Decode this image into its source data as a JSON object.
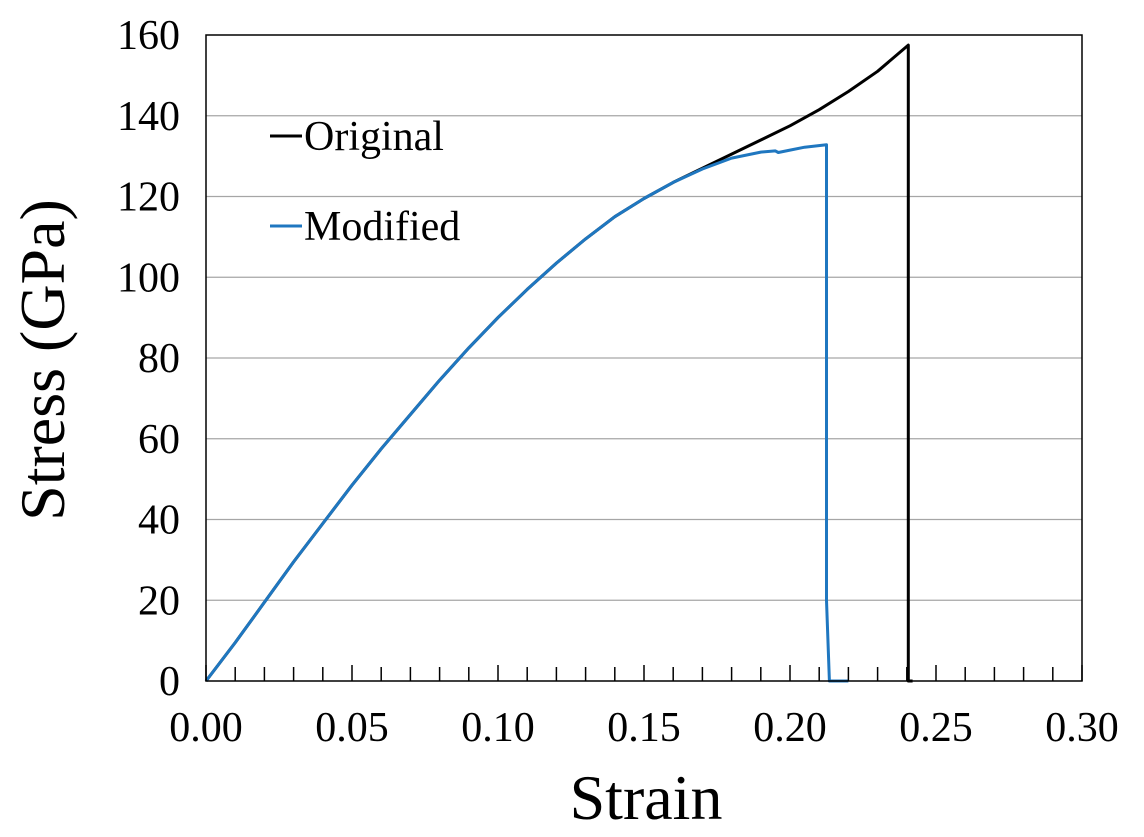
{
  "chart_data": {
    "type": "line",
    "title": "",
    "xlabel": "Strain",
    "ylabel": "Stress (GPa)",
    "xlim": [
      0,
      0.3
    ],
    "ylim": [
      0,
      160
    ],
    "x_ticks": [
      "0.00",
      "0.05",
      "0.10",
      "0.15",
      "0.20",
      "0.25",
      "0.30"
    ],
    "y_ticks": [
      "0",
      "20",
      "40",
      "60",
      "80",
      "100",
      "120",
      "140",
      "160"
    ],
    "grid": "horizontal",
    "legend_position": "upper-left",
    "series": [
      {
        "name": "Original",
        "color": "#000000",
        "points": [
          [
            0.0,
            0.0
          ],
          [
            0.01,
            9.5
          ],
          [
            0.02,
            19.5
          ],
          [
            0.03,
            29.5
          ],
          [
            0.04,
            39.0
          ],
          [
            0.05,
            48.5
          ],
          [
            0.06,
            57.5
          ],
          [
            0.07,
            66.0
          ],
          [
            0.08,
            74.5
          ],
          [
            0.09,
            82.5
          ],
          [
            0.1,
            90.0
          ],
          [
            0.11,
            97.0
          ],
          [
            0.12,
            103.5
          ],
          [
            0.13,
            109.5
          ],
          [
            0.14,
            115.0
          ],
          [
            0.15,
            119.5
          ],
          [
            0.16,
            123.5
          ],
          [
            0.17,
            127.0
          ],
          [
            0.18,
            130.5
          ],
          [
            0.19,
            134.0
          ],
          [
            0.2,
            137.5
          ],
          [
            0.21,
            141.5
          ],
          [
            0.22,
            146.0
          ],
          [
            0.23,
            151.0
          ],
          [
            0.2405,
            157.5
          ],
          [
            0.2405,
            0.0
          ],
          [
            0.242,
            0.0
          ]
        ]
      },
      {
        "name": "Modified",
        "color": "#1f77c0",
        "points": [
          [
            0.0,
            0.0
          ],
          [
            0.01,
            9.5
          ],
          [
            0.02,
            19.5
          ],
          [
            0.03,
            29.5
          ],
          [
            0.04,
            39.0
          ],
          [
            0.05,
            48.5
          ],
          [
            0.06,
            57.5
          ],
          [
            0.07,
            66.0
          ],
          [
            0.08,
            74.5
          ],
          [
            0.09,
            82.5
          ],
          [
            0.1,
            90.0
          ],
          [
            0.11,
            97.0
          ],
          [
            0.12,
            103.5
          ],
          [
            0.13,
            109.5
          ],
          [
            0.14,
            115.0
          ],
          [
            0.15,
            119.5
          ],
          [
            0.16,
            123.5
          ],
          [
            0.17,
            126.8
          ],
          [
            0.18,
            129.5
          ],
          [
            0.19,
            131.0
          ],
          [
            0.195,
            131.3
          ],
          [
            0.196,
            130.9
          ],
          [
            0.2,
            131.5
          ],
          [
            0.205,
            132.2
          ],
          [
            0.2125,
            132.8
          ],
          [
            0.2125,
            20.0
          ],
          [
            0.2135,
            0.0
          ],
          [
            0.22,
            0.0
          ]
        ]
      }
    ]
  }
}
